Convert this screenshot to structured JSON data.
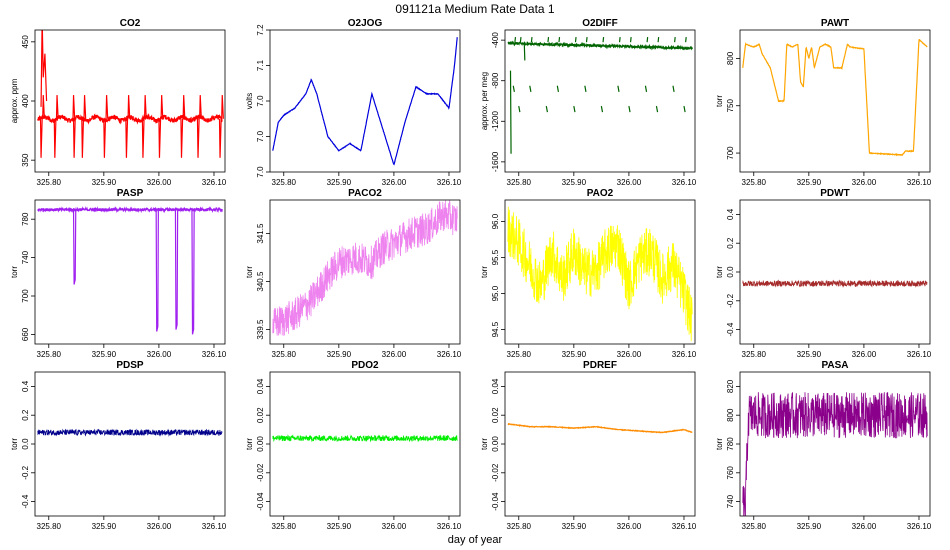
{
  "figure": {
    "title": "091121a   Medium Rate Data 1",
    "xlabel": "day of year",
    "x_ticks": [
      "325.80",
      "325.90",
      "326.00",
      "326.10"
    ]
  },
  "chart_data": [
    {
      "type": "line",
      "title": "CO2",
      "ylabel": "approx. ppm",
      "color": "#ff0000",
      "xlim": [
        325.775,
        326.12
      ],
      "ylim": [
        340,
        460
      ],
      "yticks": [
        350,
        400,
        450
      ],
      "series": [
        {
          "name": "CO2",
          "shape": "spikes",
          "base": 385,
          "spikes_up": [
            325.785,
            325.81,
            325.84,
            325.86,
            325.9,
            325.94,
            325.97,
            326.0,
            326.04,
            326.07,
            326.11
          ],
          "spike_up_to": 405,
          "spikes_down": [
            325.785,
            325.81,
            325.845,
            325.86,
            325.9,
            325.94,
            325.97,
            326.0,
            326.04,
            326.07,
            326.11
          ],
          "spike_down_to": 352,
          "notes": "initial excursion to ~470 near 325.79"
        }
      ]
    },
    {
      "type": "line",
      "title": "O2JOG",
      "ylabel": "volts",
      "color": "#0000dd",
      "xlim": [
        325.775,
        326.12
      ],
      "ylim": [
        6.95,
        7.15
      ],
      "yticks": [
        6.95,
        7.0,
        7.05,
        7.1,
        7.15
      ],
      "series": [
        {
          "name": "O2JOG",
          "x": [
            325.78,
            325.79,
            325.8,
            325.82,
            325.84,
            325.85,
            325.86,
            325.88,
            325.9,
            325.92,
            325.94,
            325.96,
            325.98,
            326.0,
            326.02,
            326.04,
            326.06,
            326.08,
            326.1,
            326.11,
            326.115
          ],
          "y": [
            6.98,
            7.02,
            7.03,
            7.04,
            7.06,
            7.08,
            7.06,
            7.0,
            6.98,
            6.99,
            6.98,
            7.06,
            7.01,
            6.96,
            7.02,
            7.07,
            7.06,
            7.06,
            7.04,
            7.1,
            7.14
          ]
        }
      ]
    },
    {
      "type": "line",
      "title": "O2DIFF",
      "ylabel": "approx. per meg",
      "color": "#006400",
      "xlim": [
        325.775,
        326.12
      ],
      "ylim": [
        -1700,
        -300
      ],
      "yticks": [
        -1600,
        -1200,
        -800,
        -400
      ],
      "series": [
        {
          "name": "O2DIFF",
          "shape": "level-with-dropouts",
          "level_start": -430,
          "level_end": -480,
          "dropout_levels": [
            -850,
            -1050
          ]
        }
      ]
    },
    {
      "type": "line",
      "title": "PAWT",
      "ylabel": "torr",
      "color": "#ffa500",
      "xlim": [
        325.775,
        326.12
      ],
      "ylim": [
        680,
        830
      ],
      "yticks": [
        700,
        750,
        800
      ],
      "series": [
        {
          "name": "PAWT",
          "x": [
            325.78,
            325.785,
            325.8,
            325.81,
            325.815,
            325.83,
            325.845,
            325.855,
            325.86,
            325.87,
            325.88,
            325.885,
            325.89,
            325.895,
            325.9,
            325.905,
            325.91,
            325.92,
            325.93,
            325.94,
            325.945,
            325.96,
            325.97,
            325.975,
            326.0,
            326.01,
            326.07,
            326.075,
            326.09,
            326.1,
            326.115
          ],
          "y": [
            790,
            815,
            812,
            815,
            805,
            790,
            755,
            755,
            815,
            812,
            815,
            775,
            770,
            812,
            800,
            812,
            790,
            812,
            815,
            812,
            790,
            790,
            815,
            812,
            810,
            700,
            698,
            702,
            702,
            820,
            812
          ]
        }
      ]
    },
    {
      "type": "line",
      "title": "PASP",
      "ylabel": "torr",
      "color": "#a020f0",
      "xlim": [
        325.775,
        326.12
      ],
      "ylim": [
        650,
        800
      ],
      "yticks": [
        660,
        700,
        740,
        780
      ],
      "series": [
        {
          "name": "PASP",
          "base": 790,
          "dips": [
            {
              "x": 325.845,
              "y": 712
            },
            {
              "x": 325.995,
              "y": 663
            },
            {
              "x": 326.03,
              "y": 665
            },
            {
              "x": 326.06,
              "y": 660
            }
          ]
        }
      ]
    },
    {
      "type": "line",
      "title": "PACO2",
      "ylabel": "torr",
      "color": "#ee82ee",
      "xlim": [
        325.775,
        326.12
      ],
      "ylim": [
        339.2,
        342.2
      ],
      "yticks": [
        339.5,
        340.5,
        341.5
      ],
      "series": [
        {
          "name": "PACO2",
          "x": [
            325.78,
            325.82,
            325.85,
            325.88,
            325.9,
            325.93,
            325.96,
            325.98,
            326.0,
            326.03,
            326.06,
            326.09,
            326.11
          ],
          "y": [
            339.6,
            339.8,
            340.1,
            340.6,
            340.9,
            341.0,
            340.9,
            341.2,
            341.3,
            341.5,
            341.6,
            341.9,
            341.8
          ],
          "noise_band": 0.35
        }
      ]
    },
    {
      "type": "line",
      "title": "PAO2",
      "ylabel": "torr",
      "color": "#ffff00",
      "xlim": [
        325.775,
        326.12
      ],
      "ylim": [
        94.3,
        96.3
      ],
      "yticks": [
        94.5,
        95.0,
        95.5,
        96.0
      ],
      "series": [
        {
          "name": "PAO2",
          "x": [
            325.78,
            325.8,
            325.82,
            325.84,
            325.86,
            325.88,
            325.9,
            325.92,
            325.94,
            325.96,
            325.98,
            326.0,
            326.02,
            326.04,
            326.06,
            326.08,
            326.1,
            326.115
          ],
          "y": [
            95.9,
            95.7,
            95.4,
            95.1,
            95.6,
            95.2,
            95.6,
            95.3,
            95.3,
            95.6,
            95.7,
            95.1,
            95.5,
            95.6,
            95.2,
            95.4,
            95.0,
            94.6
          ],
          "noise_band": 0.35
        }
      ]
    },
    {
      "type": "line",
      "title": "PDWT",
      "ylabel": "torr",
      "color": "#a52a2a",
      "xlim": [
        325.775,
        326.12
      ],
      "ylim": [
        -0.5,
        0.5
      ],
      "yticks": [
        -0.4,
        -0.2,
        0.0,
        0.2,
        0.4
      ],
      "series": [
        {
          "name": "PDWT",
          "x": [
            325.78,
            326.115
          ],
          "y": [
            -0.08,
            -0.08
          ],
          "noise_band": 0.02
        }
      ]
    },
    {
      "type": "line",
      "title": "PDSP",
      "ylabel": "torr",
      "color": "#00008b",
      "xlim": [
        325.775,
        326.12
      ],
      "ylim": [
        -0.5,
        0.5
      ],
      "yticks": [
        -0.4,
        -0.2,
        0.0,
        0.2,
        0.4
      ],
      "series": [
        {
          "name": "PDSP",
          "x": [
            325.78,
            326.115
          ],
          "y": [
            0.08,
            0.08
          ],
          "noise_band": 0.02
        }
      ]
    },
    {
      "type": "line",
      "title": "PDO2",
      "ylabel": "torr",
      "color": "#00ee00",
      "xlim": [
        325.775,
        326.12
      ],
      "ylim": [
        -0.05,
        0.05
      ],
      "yticks": [
        -0.04,
        -0.02,
        0.0,
        0.02,
        0.04
      ],
      "series": [
        {
          "name": "PDO2",
          "x": [
            325.78,
            326.115
          ],
          "y": [
            0.004,
            0.004
          ],
          "noise_band": 0.002
        }
      ]
    },
    {
      "type": "line",
      "title": "PDREF",
      "ylabel": "torr",
      "color": "#ff8c00",
      "xlim": [
        325.775,
        326.12
      ],
      "ylim": [
        -0.05,
        0.05
      ],
      "yticks": [
        -0.04,
        -0.02,
        0.0,
        0.02,
        0.04
      ],
      "series": [
        {
          "name": "PDREF",
          "x": [
            325.78,
            325.82,
            325.86,
            325.9,
            325.94,
            325.98,
            326.02,
            326.06,
            326.1,
            326.115
          ],
          "y": [
            0.014,
            0.012,
            0.012,
            0.011,
            0.012,
            0.01,
            0.009,
            0.008,
            0.01,
            0.008
          ]
        }
      ]
    },
    {
      "type": "line",
      "title": "PASA",
      "ylabel": "torr",
      "color": "#8b008b",
      "xlim": [
        325.775,
        326.12
      ],
      "ylim": [
        730,
        830
      ],
      "yticks": [
        740,
        760,
        780,
        800,
        820
      ],
      "series": [
        {
          "name": "PASA",
          "x": [
            325.78,
            325.785,
            325.79,
            326.115
          ],
          "y": [
            737,
            738,
            800,
            800
          ],
          "noise_band": 16
        }
      ]
    }
  ]
}
